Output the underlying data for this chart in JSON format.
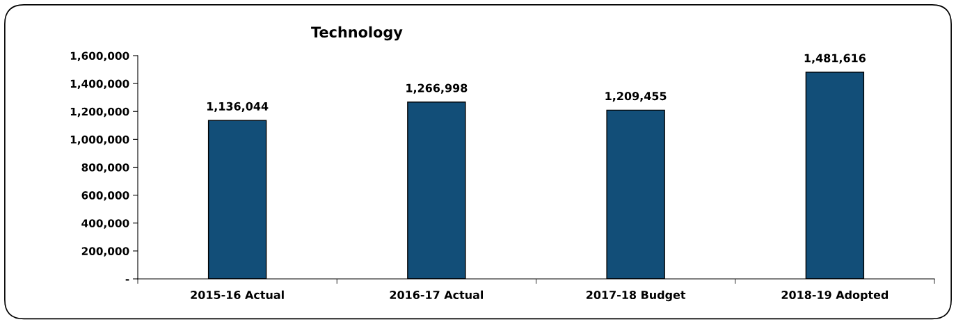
{
  "chart_data": {
    "type": "bar",
    "title": "Technology",
    "categories": [
      "2015-16 Actual",
      "2016-17 Actual",
      "2017-18 Budget",
      "2018-19 Adopted"
    ],
    "values": [
      1136044,
      1266998,
      1209455,
      1481616
    ],
    "color": "#124e78",
    "ylim": [
      0,
      1600000
    ],
    "yticks": [
      {
        "value": 0,
        "label": "-"
      },
      {
        "value": 200000,
        "label": "200,000"
      },
      {
        "value": 400000,
        "label": "400,000"
      },
      {
        "value": 600000,
        "label": "600,000"
      },
      {
        "value": 800000,
        "label": "800,000"
      },
      {
        "value": 1000000,
        "label": "1,000,000"
      },
      {
        "value": 1200000,
        "label": "1,200,000"
      },
      {
        "value": 1400000,
        "label": "1,400,000"
      },
      {
        "value": 1600000,
        "label": "1,600,000"
      }
    ],
    "value_labels": [
      "1,136,044",
      "1,266,998",
      "1,209,455",
      "1,481,616"
    ],
    "grid": false,
    "legend": false
  }
}
